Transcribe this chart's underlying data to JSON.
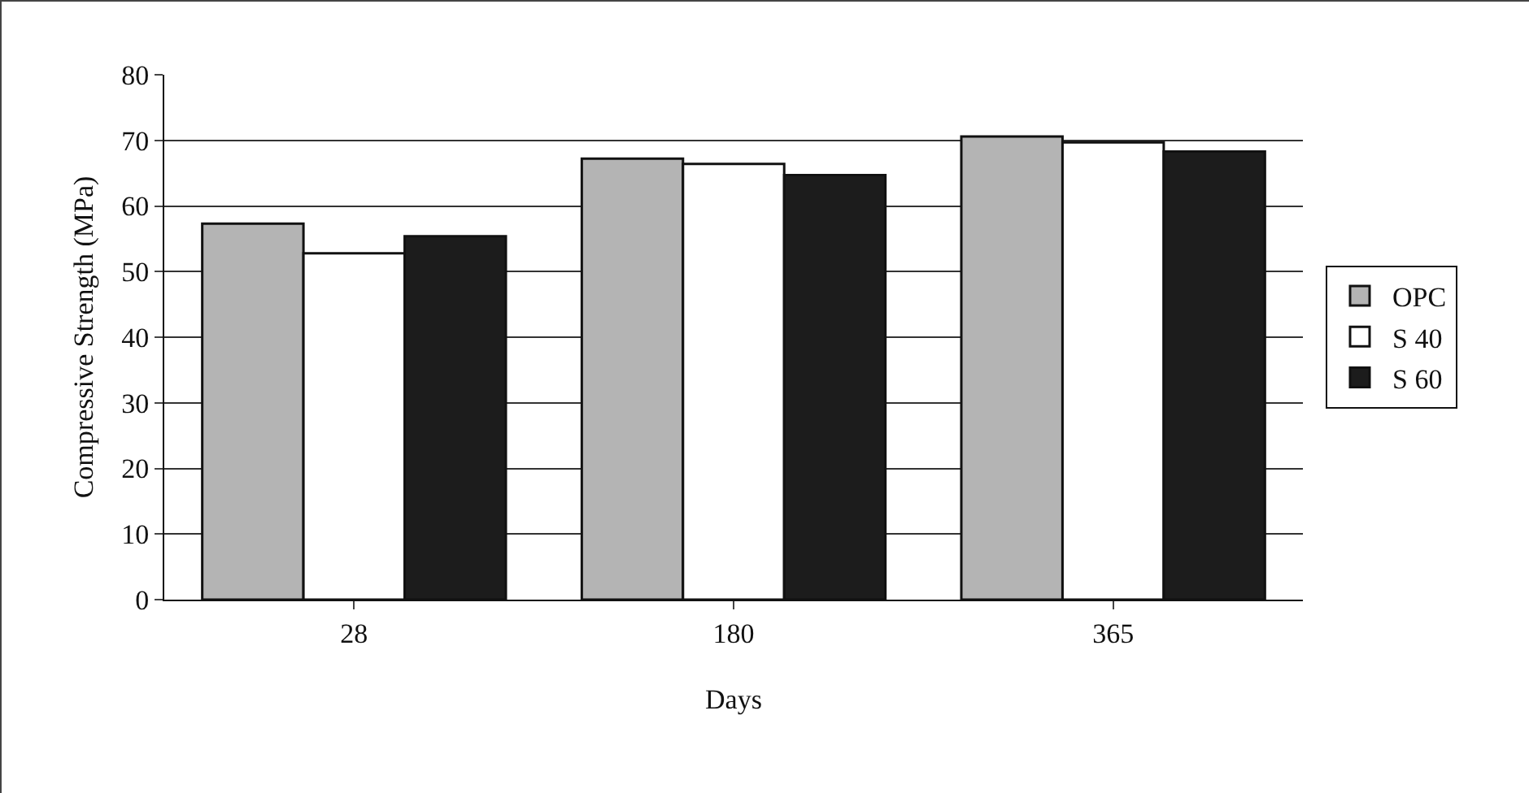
{
  "chart_data": {
    "type": "bar",
    "xlabel": "Days",
    "ylabel": "Compressive Strength (MPa)",
    "categories": [
      "28",
      "180",
      "365"
    ],
    "series": [
      {
        "name": "OPC",
        "color": "#b4b4b4",
        "values": [
          57.3,
          67.2,
          70.6
        ]
      },
      {
        "name": "S 40",
        "color": "#ffffff",
        "values": [
          52.8,
          66.4,
          69.7
        ]
      },
      {
        "name": "S 60",
        "color": "#1c1c1c",
        "values": [
          55.4,
          64.7,
          68.3
        ]
      }
    ],
    "ylim": [
      0,
      80
    ],
    "yticks": [
      0,
      10,
      20,
      30,
      40,
      50,
      60,
      70,
      80
    ],
    "grid": "y",
    "legend": "right"
  }
}
